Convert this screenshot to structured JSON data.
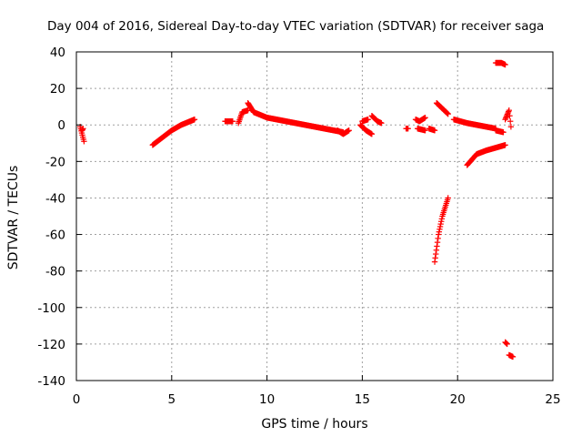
{
  "chart_data": {
    "type": "scatter",
    "title": "Day 004 of 2016, Sidereal Day-to-day VTEC variation (SDTVAR) for receiver saga",
    "xlabel": "GPS time / hours",
    "ylabel": "SDTVAR / TECUs",
    "xlim": [
      0,
      25
    ],
    "ylim": [
      -140,
      40
    ],
    "xticks": [
      0,
      5,
      10,
      15,
      20,
      25
    ],
    "yticks": [
      -140,
      -120,
      -100,
      -80,
      -60,
      -40,
      -20,
      0,
      20,
      40
    ],
    "grid": true,
    "marker": "plus",
    "color": "#ff0000",
    "segments": [
      {
        "x": [
          0.2,
          0.4
        ],
        "y": [
          -1,
          -9
        ]
      },
      {
        "x": [
          0.3,
          0.35
        ],
        "y": [
          -3,
          -2
        ]
      },
      {
        "x": [
          4.0,
          4.5,
          5.0,
          5.5,
          6.2
        ],
        "y": [
          -11,
          -7,
          -3,
          0,
          3
        ]
      },
      {
        "x": [
          7.8,
          8.2
        ],
        "y": [
          2,
          2
        ]
      },
      {
        "x": [
          8.5,
          8.7,
          9.0
        ],
        "y": [
          1,
          7,
          8
        ]
      },
      {
        "x": [
          9.0,
          9.3,
          10.0,
          11.0,
          12.0,
          13.0,
          14.0
        ],
        "y": [
          12,
          7,
          4,
          2,
          0,
          -2,
          -4
        ]
      },
      {
        "x": [
          13.7,
          14.0,
          14.3
        ],
        "y": [
          -3,
          -5,
          -3
        ]
      },
      {
        "x": [
          14.9,
          15.2,
          15.5
        ],
        "y": [
          0,
          -3,
          -5
        ]
      },
      {
        "x": [
          15.0,
          15.3
        ],
        "y": [
          2,
          3
        ]
      },
      {
        "x": [
          15.5,
          15.8,
          16.0
        ],
        "y": [
          5,
          2,
          1
        ]
      },
      {
        "x": [
          17.3,
          17.4
        ],
        "y": [
          -2,
          -2
        ]
      },
      {
        "x": [
          17.8,
          18.0,
          18.3
        ],
        "y": [
          3,
          2,
          4
        ]
      },
      {
        "x": [
          17.9,
          18.3
        ],
        "y": [
          -2,
          -3
        ]
      },
      {
        "x": [
          18.5,
          18.8
        ],
        "y": [
          -2,
          -3
        ]
      },
      {
        "x": [
          18.9,
          19.2,
          19.5
        ],
        "y": [
          12,
          9,
          6
        ]
      },
      {
        "x": [
          18.8,
          19.0,
          19.2,
          19.5
        ],
        "y": [
          -75,
          -60,
          -50,
          -40
        ]
      },
      {
        "x": [
          19.8,
          20.5,
          21.5,
          22.0
        ],
        "y": [
          3,
          1,
          -1,
          -2
        ]
      },
      {
        "x": [
          20.5,
          21.0,
          21.5,
          22.5
        ],
        "y": [
          -22,
          -16,
          -14,
          -11
        ]
      },
      {
        "x": [
          22.0,
          22.4
        ],
        "y": [
          -3,
          -4
        ]
      },
      {
        "x": [
          22.5,
          22.7,
          22.8
        ],
        "y": [
          3,
          8,
          -1
        ]
      },
      {
        "x": [
          22.0,
          22.3,
          22.5
        ],
        "y": [
          34,
          34,
          33
        ]
      },
      {
        "x": [
          22.5,
          22.6
        ],
        "y": [
          -119,
          -120
        ]
      },
      {
        "x": [
          22.7,
          22.9
        ],
        "y": [
          -126,
          -127
        ]
      }
    ]
  }
}
